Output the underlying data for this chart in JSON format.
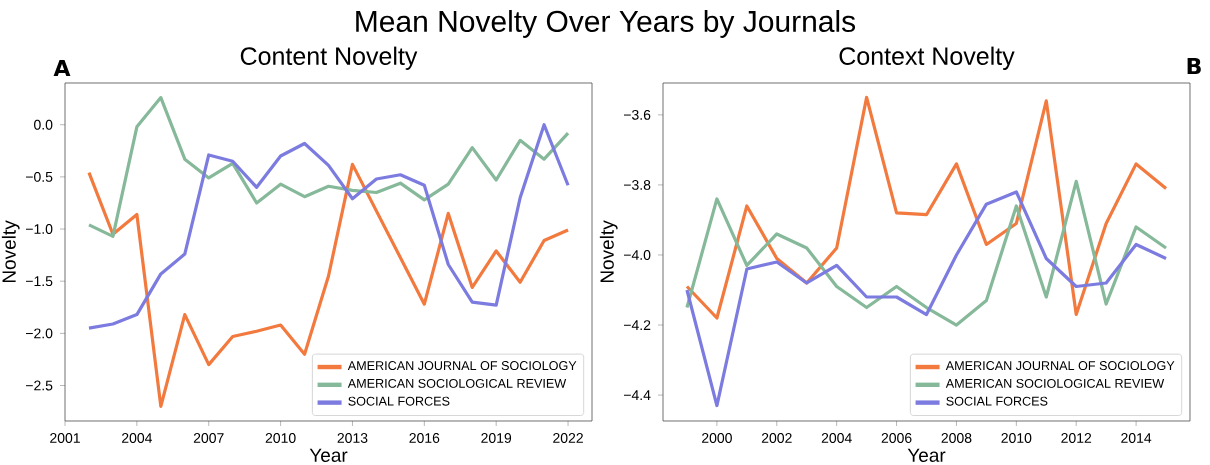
{
  "chart_data": [
    {
      "type": "line",
      "title": "Content Novelty",
      "xlabel": "Year",
      "ylabel": "Novelty",
      "annotations": [
        "Mean Novelty Over Years by Journals",
        "A"
      ],
      "x": [
        2002,
        2003,
        2004,
        2005,
        2006,
        2007,
        2008,
        2009,
        2010,
        2011,
        2012,
        2013,
        2014,
        2015,
        2016,
        2017,
        2018,
        2019,
        2020,
        2021,
        2022
      ],
      "series": [
        {
          "name": "AMERICAN JOURNAL OF SOCIOLOGY",
          "color": "#f27a3f",
          "values": [
            -0.46,
            -1.05,
            -0.86,
            -2.7,
            -1.82,
            -2.3,
            -2.03,
            -1.98,
            -1.92,
            -2.2,
            -1.45,
            -0.38,
            null,
            null,
            -1.72,
            -0.85,
            -1.56,
            -1.21,
            -1.51,
            -1.11,
            -1.01
          ]
        },
        {
          "name": "AMERICAN SOCIOLOGICAL REVIEW",
          "color": "#86b89a",
          "values": [
            -0.96,
            -1.07,
            -0.02,
            0.26,
            -0.33,
            -0.51,
            -0.37,
            -0.75,
            -0.57,
            -0.69,
            -0.59,
            -0.63,
            -0.65,
            -0.56,
            -0.72,
            -0.57,
            -0.22,
            -0.53,
            -0.15,
            -0.33,
            -0.08
          ]
        },
        {
          "name": "SOCIAL FORCES",
          "color": "#7c7be0",
          "values": [
            -1.95,
            -1.91,
            -1.82,
            -1.43,
            -1.24,
            -0.29,
            -0.35,
            -0.6,
            -0.3,
            -0.18,
            -0.39,
            -0.71,
            -0.52,
            -0.48,
            -0.58,
            -1.34,
            -1.7,
            -1.73,
            -0.7,
            0.0,
            -0.58
          ]
        }
      ],
      "xlim": [
        2001,
        2023
      ],
      "ylim": [
        -2.84,
        0.4
      ],
      "xticks": [
        2001,
        2004,
        2007,
        2010,
        2013,
        2016,
        2019,
        2022
      ],
      "yticks": [
        {
          "value": -2.5,
          "label": "−2.5"
        },
        {
          "value": -2.0,
          "label": "−2.0"
        },
        {
          "value": -1.5,
          "label": "−1.5"
        },
        {
          "value": -1.0,
          "label": "−1.0"
        },
        {
          "value": -0.5,
          "label": "−0.5"
        },
        {
          "value": 0.0,
          "label": "0.0"
        }
      ],
      "legend": "bottom right",
      "grid": false,
      "marker": "none",
      "line_style": "solid"
    },
    {
      "type": "line",
      "title": "Context Novelty",
      "xlabel": "Year",
      "ylabel": "Novelty",
      "annotations": [
        "B"
      ],
      "x": [
        1999,
        2000,
        2001,
        2002,
        2003,
        2004,
        2005,
        2006,
        2007,
        2008,
        2009,
        2010,
        2011,
        2012,
        2013,
        2014,
        2015
      ],
      "series": [
        {
          "name": "AMERICAN JOURNAL OF SOCIOLOGY",
          "color": "#f27a3f",
          "values": [
            -4.09,
            -4.18,
            -3.86,
            -4.01,
            -4.08,
            -3.98,
            -3.55,
            -3.88,
            -3.885,
            -3.74,
            -3.97,
            -3.91,
            -3.56,
            -4.17,
            -3.91,
            -3.74,
            -3.81
          ]
        },
        {
          "name": "AMERICAN SOCIOLOGICAL REVIEW",
          "color": "#86b89a",
          "values": [
            -4.15,
            -3.84,
            -4.03,
            -3.94,
            -3.98,
            -4.09,
            -4.15,
            -4.09,
            -4.15,
            -4.2,
            -4.13,
            -3.86,
            -4.12,
            -3.79,
            -4.14,
            -3.92,
            -3.98
          ]
        },
        {
          "name": "SOCIAL FORCES",
          "color": "#7c7be0",
          "values": [
            -4.1,
            -4.43,
            -4.04,
            -4.02,
            -4.08,
            -4.03,
            -4.12,
            -4.12,
            -4.17,
            -4.0,
            -3.855,
            -3.82,
            -4.01,
            -4.09,
            -4.08,
            -3.97,
            -4.01
          ]
        }
      ],
      "xlim": [
        1998.2,
        2015.8
      ],
      "ylim": [
        -4.474,
        -3.509
      ],
      "xticks": [
        2000,
        2002,
        2004,
        2006,
        2008,
        2010,
        2012,
        2014
      ],
      "yticks": [
        {
          "value": -4.4,
          "label": "−4.4"
        },
        {
          "value": -4.2,
          "label": "−4.2"
        },
        {
          "value": -4.0,
          "label": "−4.0"
        },
        {
          "value": -3.8,
          "label": "−3.8"
        },
        {
          "value": -3.6,
          "label": "−3.6"
        }
      ],
      "legend": "bottom right",
      "grid": false,
      "marker": "none",
      "line_style": "solid"
    }
  ]
}
